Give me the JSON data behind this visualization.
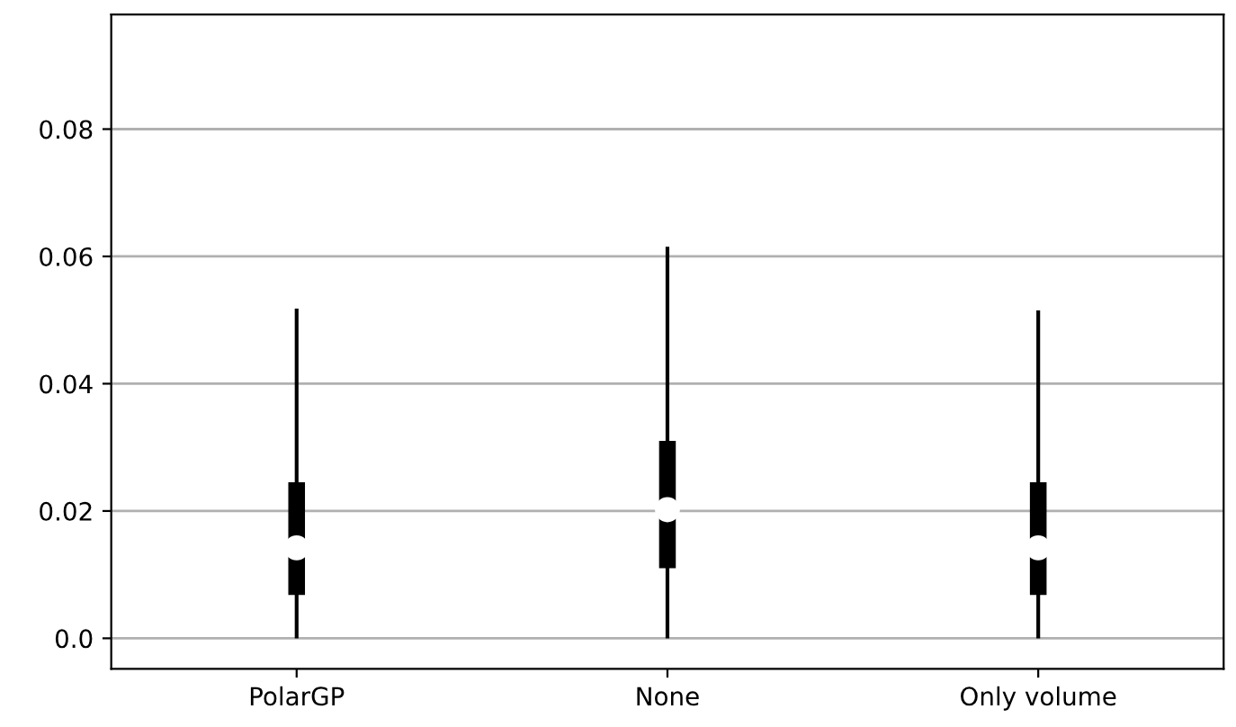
{
  "chart_data": {
    "type": "box",
    "categories": [
      "PolarGP",
      "None",
      "Only volume"
    ],
    "colors": [
      "#000000",
      "#000000",
      "#000000"
    ],
    "boxes": [
      {
        "low": 0.0,
        "q1": 0.0068,
        "median": 0.0142,
        "q3": 0.0245,
        "high": 0.0518
      },
      {
        "low": 0.0,
        "q1": 0.011,
        "median": 0.0202,
        "q3": 0.031,
        "high": 0.0615
      },
      {
        "low": 0.0,
        "q1": 0.0068,
        "median": 0.0142,
        "q3": 0.0245,
        "high": 0.0515
      }
    ],
    "ylim": [
      -0.0048,
      0.098
    ],
    "yticks": [
      {
        "value": 0,
        "label": "0.0"
      },
      0.02,
      0.04,
      0.06,
      0.08
    ],
    "grid": "y"
  }
}
